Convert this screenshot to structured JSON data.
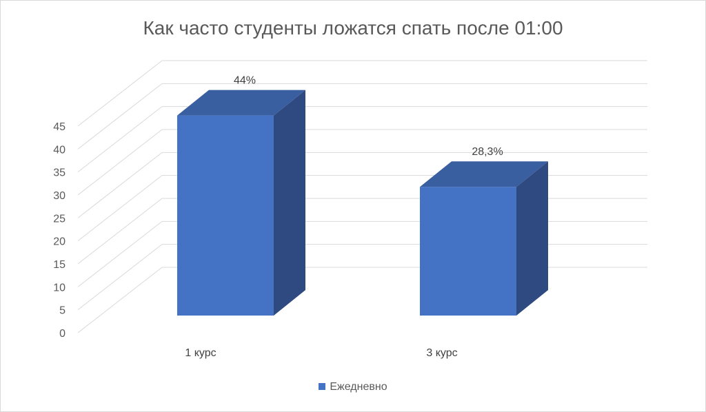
{
  "chart_data": {
    "type": "bar",
    "title": "Как часто студенты ложатся спать после 01:00",
    "categories": [
      "1 курс",
      "3 курс"
    ],
    "series": [
      {
        "name": "Ежедневно",
        "values": [
          44,
          28.3
        ],
        "labels": [
          "44%",
          "28,3%"
        ],
        "color": "#4472C4"
      }
    ],
    "ylim": [
      0,
      45
    ],
    "ytick_step": 5,
    "yticks": [
      "0",
      "5",
      "10",
      "15",
      "20",
      "25",
      "30",
      "35",
      "40",
      "45"
    ],
    "xlabel": "",
    "ylabel": "",
    "grid": true,
    "legend": "bottom",
    "style": "3d-column"
  }
}
